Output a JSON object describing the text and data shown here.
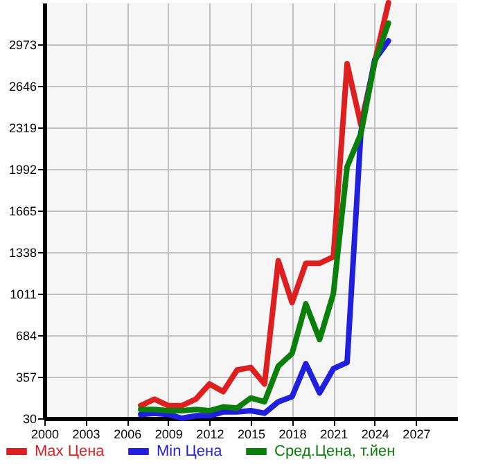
{
  "chart_data": {
    "type": "line",
    "x": [
      2007,
      2008,
      2009,
      2010,
      2011,
      2012,
      2013,
      2014,
      2015,
      2016,
      2017,
      2018,
      2019,
      2020,
      2021,
      2022,
      2023,
      2024,
      2025
    ],
    "series": [
      {
        "name": "Max Цена",
        "color": "#dd1f1f",
        "values": [
          130,
          180,
          130,
          130,
          180,
          300,
          240,
          410,
          430,
          300,
          1270,
          940,
          1250,
          1250,
          1300,
          2820,
          2340,
          2830,
          3300
        ]
      },
      {
        "name": "Min Цена",
        "color": "#1f1fdd",
        "values": [
          60,
          70,
          60,
          30,
          50,
          50,
          80,
          80,
          90,
          70,
          160,
          200,
          460,
          230,
          420,
          470,
          2280,
          2850,
          3000
        ]
      },
      {
        "name": "Сред.Цена, т.йен",
        "color": "#0a800a",
        "values": [
          100,
          100,
          90,
          90,
          100,
          90,
          120,
          110,
          190,
          160,
          440,
          540,
          930,
          650,
          1010,
          2010,
          2270,
          2830,
          3140
        ]
      }
    ],
    "xlim": [
      2000,
      2030
    ],
    "xticks": [
      2000,
      2003,
      2006,
      2009,
      2012,
      2015,
      2018,
      2021,
      2024,
      2027
    ],
    "ylim": [
      30,
      3300
    ],
    "yticks": [
      30,
      357,
      684,
      1011,
      1338,
      1665,
      1992,
      2319,
      2646,
      2973
    ],
    "grid": true,
    "legend": "bottom",
    "marker": "none",
    "line_style": "solid"
  }
}
